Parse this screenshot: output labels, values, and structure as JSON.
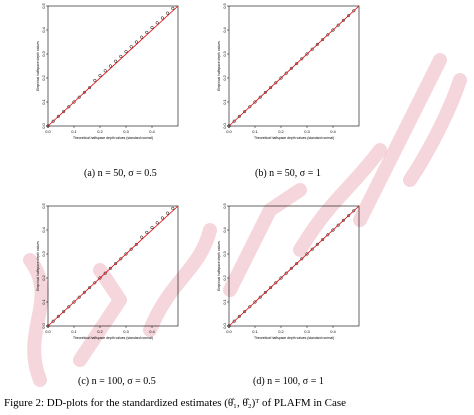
{
  "watermark": {
    "text": "Statistica Sinica",
    "color": "#c81e3c"
  },
  "colors": {
    "points": "#000000",
    "fit_line": "#e00000"
  },
  "figure_caption": "Figure 2: DD-plots for the standardized estimates (θ̂₁, θ̂₂)ᵀ of PLAFM in Case",
  "chart_data": [
    {
      "type": "scatter",
      "caption": "(a) n = 50, σ = 0.5",
      "xlabel": "Theoretical halfspace depth values (standard normal)",
      "ylabel": "Empirical halfspace depth values",
      "xlim": [
        0,
        0.5
      ],
      "ylim": [
        0,
        0.5
      ],
      "xticks": [
        "0.0",
        "0.1",
        "0.2",
        "0.3",
        "0.4"
      ],
      "yticks": [
        "0.0",
        "0.1",
        "0.2",
        "0.3",
        "0.4",
        "0.5"
      ],
      "reference_line": {
        "intercept": 0,
        "slope": 1
      },
      "x": [
        0.0,
        0.02,
        0.04,
        0.06,
        0.08,
        0.1,
        0.12,
        0.14,
        0.16,
        0.18,
        0.2,
        0.22,
        0.24,
        0.26,
        0.28,
        0.3,
        0.32,
        0.34,
        0.36,
        0.38,
        0.4,
        0.42,
        0.44,
        0.46,
        0.48
      ],
      "y": [
        0.0,
        0.02,
        0.04,
        0.06,
        0.08,
        0.1,
        0.12,
        0.14,
        0.16,
        0.19,
        0.21,
        0.23,
        0.25,
        0.27,
        0.29,
        0.31,
        0.33,
        0.35,
        0.37,
        0.39,
        0.41,
        0.43,
        0.45,
        0.47,
        0.49
      ]
    },
    {
      "type": "scatter",
      "caption": "(b) n = 50, σ = 1",
      "xlabel": "Theoretical halfspace depth values (standard normal)",
      "ylabel": "Empirical halfspace depth values",
      "xlim": [
        0,
        0.5
      ],
      "ylim": [
        0,
        0.5
      ],
      "xticks": [
        "0.0",
        "0.1",
        "0.2",
        "0.3",
        "0.4"
      ],
      "yticks": [
        "0.0",
        "0.1",
        "0.2",
        "0.3",
        "0.4",
        "0.5"
      ],
      "reference_line": {
        "intercept": 0,
        "slope": 1
      },
      "x": [
        0.0,
        0.02,
        0.04,
        0.06,
        0.08,
        0.1,
        0.12,
        0.14,
        0.16,
        0.18,
        0.2,
        0.22,
        0.24,
        0.26,
        0.28,
        0.3,
        0.32,
        0.34,
        0.36,
        0.38,
        0.4,
        0.42,
        0.44,
        0.46,
        0.48
      ],
      "y": [
        0.0,
        0.02,
        0.04,
        0.06,
        0.08,
        0.1,
        0.12,
        0.14,
        0.16,
        0.18,
        0.2,
        0.22,
        0.24,
        0.26,
        0.28,
        0.3,
        0.32,
        0.34,
        0.36,
        0.38,
        0.4,
        0.42,
        0.44,
        0.46,
        0.48
      ]
    },
    {
      "type": "scatter",
      "caption": "(c) n = 100, σ = 0.5",
      "xlabel": "Theoretical halfspace depth values (standard normal)",
      "ylabel": "Empirical halfspace depth values",
      "xlim": [
        0,
        0.5
      ],
      "ylim": [
        0,
        0.5
      ],
      "xticks": [
        "0.0",
        "0.1",
        "0.2",
        "0.3",
        "0.4"
      ],
      "yticks": [
        "0.0",
        "0.1",
        "0.2",
        "0.3",
        "0.4",
        "0.5"
      ],
      "reference_line": {
        "intercept": 0,
        "slope": 1
      },
      "x": [
        0.0,
        0.02,
        0.04,
        0.06,
        0.08,
        0.1,
        0.12,
        0.14,
        0.16,
        0.18,
        0.2,
        0.22,
        0.24,
        0.26,
        0.28,
        0.3,
        0.32,
        0.34,
        0.36,
        0.38,
        0.4,
        0.42,
        0.44,
        0.46,
        0.48
      ],
      "y": [
        0.0,
        0.02,
        0.04,
        0.06,
        0.08,
        0.1,
        0.12,
        0.14,
        0.16,
        0.18,
        0.2,
        0.22,
        0.24,
        0.26,
        0.28,
        0.3,
        0.32,
        0.34,
        0.37,
        0.39,
        0.41,
        0.43,
        0.45,
        0.47,
        0.49
      ]
    },
    {
      "type": "scatter",
      "caption": "(d) n = 100, σ = 1",
      "xlabel": "Theoretical halfspace depth values (standard normal)",
      "ylabel": "Empirical halfspace depth values",
      "xlim": [
        0,
        0.5
      ],
      "ylim": [
        0,
        0.5
      ],
      "xticks": [
        "0.0",
        "0.1",
        "0.2",
        "0.3",
        "0.4"
      ],
      "yticks": [
        "0.0",
        "0.1",
        "0.2",
        "0.3",
        "0.4",
        "0.5"
      ],
      "reference_line": {
        "intercept": 0,
        "slope": 1
      },
      "x": [
        0.0,
        0.02,
        0.04,
        0.06,
        0.08,
        0.1,
        0.12,
        0.14,
        0.16,
        0.18,
        0.2,
        0.22,
        0.24,
        0.26,
        0.28,
        0.3,
        0.32,
        0.34,
        0.36,
        0.38,
        0.4,
        0.42,
        0.44,
        0.46,
        0.48
      ],
      "y": [
        0.0,
        0.02,
        0.04,
        0.06,
        0.08,
        0.1,
        0.12,
        0.14,
        0.16,
        0.18,
        0.2,
        0.22,
        0.24,
        0.26,
        0.28,
        0.3,
        0.32,
        0.34,
        0.36,
        0.38,
        0.4,
        0.42,
        0.44,
        0.46,
        0.48
      ]
    }
  ]
}
